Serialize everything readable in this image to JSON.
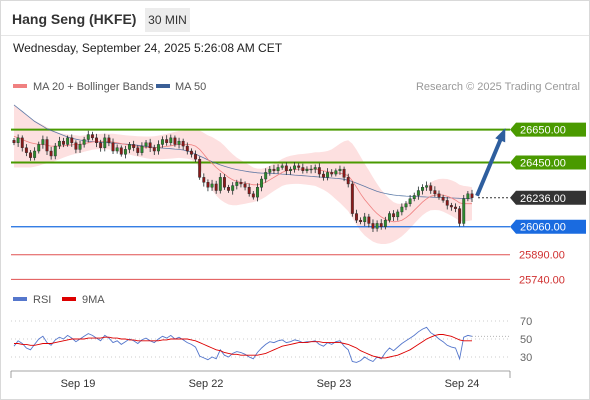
{
  "header": {
    "title": "Hang Seng (HKFE)",
    "interval": "30 MIN",
    "datetime": "Wednesday, September 24, 2025 5:26:08 AM CET"
  },
  "legend": {
    "items": [
      {
        "label": "MA 20 + Bollinger Bands",
        "color": "#f08080"
      },
      {
        "label": "MA 50",
        "color": "#3a5f96"
      }
    ],
    "credit": "Research © 2025 Trading Central"
  },
  "rsi_legend": {
    "items": [
      {
        "label": "RSI",
        "color": "#5577cc"
      },
      {
        "label": "9MA",
        "color": "#dd0000"
      }
    ]
  },
  "chart_data": [
    {
      "type": "candlestick",
      "name": "price",
      "x_ticks": [
        "Sep 19",
        "Sep 22",
        "Sep 23",
        "Sep 24"
      ],
      "ylim": [
        25700,
        26830
      ],
      "levels": [
        {
          "value": 26650.0,
          "label": "26650.00",
          "kind": "resistance",
          "color": "#4a9a00"
        },
        {
          "value": 26450.0,
          "label": "26450.00",
          "kind": "resistance",
          "color": "#4a9a00"
        },
        {
          "value": 26236.0,
          "label": "26236.00",
          "kind": "last",
          "color": "#333333"
        },
        {
          "value": 26060.0,
          "label": "26060.00",
          "kind": "pivot",
          "color": "#1a6be0"
        },
        {
          "value": 25890.0,
          "label": "25890.00",
          "kind": "support",
          "color": "#e05050"
        },
        {
          "value": 25740.0,
          "label": "25740.00",
          "kind": "support",
          "color": "#e05050"
        }
      ],
      "arrow": {
        "from": 26236,
        "to": 26650,
        "direction": "up",
        "color": "#2e5e9e"
      },
      "closes": [
        26570,
        26600,
        26540,
        26510,
        26480,
        26520,
        26560,
        26590,
        26520,
        26490,
        26550,
        26580,
        26560,
        26600,
        26570,
        26530,
        26560,
        26590,
        26620,
        26600,
        26570,
        26540,
        26600,
        26570,
        26520,
        26540,
        26500,
        26530,
        26560,
        26540,
        26510,
        26550,
        26570,
        26540,
        26520,
        26560,
        26590,
        26570,
        26600,
        26560,
        26580,
        26550,
        26520,
        26500,
        26470,
        26360,
        26330,
        26300,
        26320,
        26280,
        26360,
        26300,
        26280,
        26310,
        26330,
        26320,
        26300,
        26260,
        26240,
        26300,
        26350,
        26390,
        26410,
        26400,
        26420,
        26430,
        26400,
        26410,
        26430,
        26420,
        26400,
        26410,
        26410,
        26420,
        26380,
        26360,
        26390,
        26380,
        26400,
        26410,
        26360,
        26320,
        26140,
        26100,
        26090,
        26120,
        26080,
        26050,
        26080,
        26060,
        26100,
        26140,
        26120,
        26150,
        26180,
        26200,
        26230,
        26250,
        26280,
        26300,
        26310,
        26280,
        26260,
        26240,
        26220,
        26190,
        26180,
        26170,
        26080,
        26230,
        26260,
        26236
      ],
      "ma20": [
        26610,
        26600,
        26590,
        26580,
        26570,
        26565,
        26560,
        26560,
        26555,
        26550,
        26550,
        26550,
        26552,
        26555,
        26557,
        26560,
        26560,
        26565,
        26570,
        26575,
        26577,
        26578,
        26578,
        26577,
        26575,
        26570,
        26565,
        26560,
        26556,
        26552,
        26548,
        26545,
        26542,
        26540,
        26540,
        26542,
        26545,
        26548,
        26552,
        26556,
        26560,
        26560,
        26560,
        26558,
        26550,
        26530,
        26500,
        26470,
        26445,
        26420,
        26400,
        26380,
        26360,
        26345,
        26335,
        26330,
        26325,
        26320,
        26315,
        26315,
        26320,
        26330,
        26345,
        26360,
        26375,
        26390,
        26400,
        26405,
        26408,
        26410,
        26410,
        26410,
        26410,
        26410,
        26405,
        26400,
        26395,
        26390,
        26387,
        26385,
        26380,
        26370,
        26340,
        26300,
        26260,
        26225,
        26195,
        26165,
        26140,
        26120,
        26105,
        26095,
        26090,
        26092,
        26100,
        26115,
        26135,
        26160,
        26185,
        26210,
        26230,
        26245,
        26252,
        26255,
        26252,
        26245,
        26235,
        26222,
        26205,
        26200,
        26200,
        26200
      ],
      "ma50": [
        26800,
        26780,
        26760,
        26740,
        26720,
        26700,
        26685,
        26670,
        26655,
        26645,
        26635,
        26625,
        26615,
        26605,
        26598,
        26592,
        26587,
        26583,
        26580,
        26578,
        26576,
        26574,
        26572,
        26570,
        26568,
        26566,
        26564,
        26562,
        26560,
        26558,
        26555,
        26552,
        26548,
        26545,
        26542,
        26540,
        26538,
        26536,
        26534,
        26532,
        26530,
        26526,
        26520,
        26512,
        26502,
        26490,
        26478,
        26466,
        26455,
        26445,
        26436,
        26428,
        26420,
        26413,
        26407,
        26402,
        26398,
        26394,
        26391,
        26388,
        26386,
        26385,
        26384,
        26383,
        26382,
        26380,
        26378,
        26376,
        26374,
        26372,
        26370,
        26368,
        26366,
        26364,
        26362,
        26360,
        26358,
        26356,
        26354,
        26352,
        26348,
        26342,
        26335,
        26325,
        26315,
        26305,
        26295,
        26285,
        26275,
        26268,
        26262,
        26257,
        26253,
        26250,
        26248,
        26246,
        26245,
        26244,
        26243,
        26242,
        26241,
        26240,
        26239,
        26238,
        26237,
        26236,
        26235,
        26234,
        26233,
        26232,
        26231,
        26230
      ],
      "band_width": [
        190,
        180,
        170,
        160,
        150,
        140,
        130,
        120,
        110,
        100,
        90,
        80,
        72,
        66,
        60,
        56,
        52,
        50,
        48,
        47,
        46,
        46,
        47,
        48,
        50,
        52,
        54,
        56,
        58,
        60,
        62,
        64,
        66,
        68,
        70,
        72,
        74,
        76,
        78,
        80,
        82,
        84,
        86,
        90,
        100,
        115,
        130,
        145,
        160,
        170,
        175,
        172,
        165,
        155,
        145,
        135,
        125,
        115,
        105,
        98,
        92,
        88,
        85,
        83,
        82,
        82,
        84,
        86,
        88,
        90,
        92,
        95,
        98,
        102,
        108,
        115,
        125,
        140,
        160,
        180,
        200,
        215,
        225,
        228,
        225,
        218,
        208,
        195,
        180,
        165,
        150,
        135,
        120,
        108,
        98,
        90,
        85,
        82,
        80,
        80,
        82,
        85,
        90,
        95,
        100,
        105,
        108,
        110,
        110,
        108,
        105,
        100
      ]
    },
    {
      "type": "line",
      "name": "RSI",
      "ylim": [
        20,
        80
      ],
      "y_ticks": [
        70,
        50,
        30
      ],
      "series": [
        {
          "name": "RSI",
          "values": [
            42,
            48,
            45,
            40,
            38,
            44,
            50,
            53,
            46,
            43,
            49,
            52,
            50,
            54,
            51,
            47,
            50,
            53,
            56,
            54,
            51,
            48,
            54,
            51,
            46,
            48,
            44,
            47,
            50,
            48,
            45,
            49,
            51,
            48,
            46,
            50,
            53,
            51,
            54,
            50,
            52,
            49,
            46,
            44,
            41,
            31,
            29,
            27,
            30,
            28,
            38,
            32,
            30,
            34,
            36,
            35,
            33,
            30,
            28,
            35,
            40,
            44,
            47,
            46,
            48,
            49,
            46,
            47,
            49,
            48,
            46,
            47,
            47,
            48,
            44,
            42,
            46,
            44,
            47,
            48,
            42,
            38,
            25,
            24,
            26,
            30,
            27,
            25,
            30,
            28,
            35,
            40,
            37,
            41,
            45,
            48,
            51,
            54,
            58,
            61,
            63,
            57,
            54,
            50,
            47,
            43,
            41,
            40,
            28,
            52,
            54,
            53
          ]
        },
        {
          "name": "9MA",
          "values": [
            45,
            45,
            44,
            44,
            43,
            43,
            44,
            45,
            45,
            45,
            46,
            47,
            48,
            49,
            50,
            50,
            50,
            50,
            51,
            51,
            51,
            51,
            52,
            52,
            51,
            51,
            50,
            50,
            49,
            49,
            48,
            48,
            48,
            48,
            48,
            48,
            49,
            49,
            50,
            50,
            50,
            50,
            50,
            49,
            48,
            46,
            44,
            42,
            40,
            38,
            37,
            35,
            34,
            33,
            33,
            32,
            32,
            32,
            32,
            32,
            33,
            34,
            36,
            38,
            40,
            42,
            43,
            44,
            45,
            46,
            46,
            46,
            47,
            47,
            47,
            46,
            46,
            46,
            46,
            46,
            45,
            44,
            42,
            40,
            37,
            35,
            33,
            31,
            30,
            29,
            29,
            30,
            31,
            32,
            34,
            36,
            38,
            41,
            44,
            47,
            50,
            52,
            54,
            55,
            55,
            54,
            53,
            51,
            49,
            48,
            48,
            48
          ]
        }
      ]
    }
  ]
}
